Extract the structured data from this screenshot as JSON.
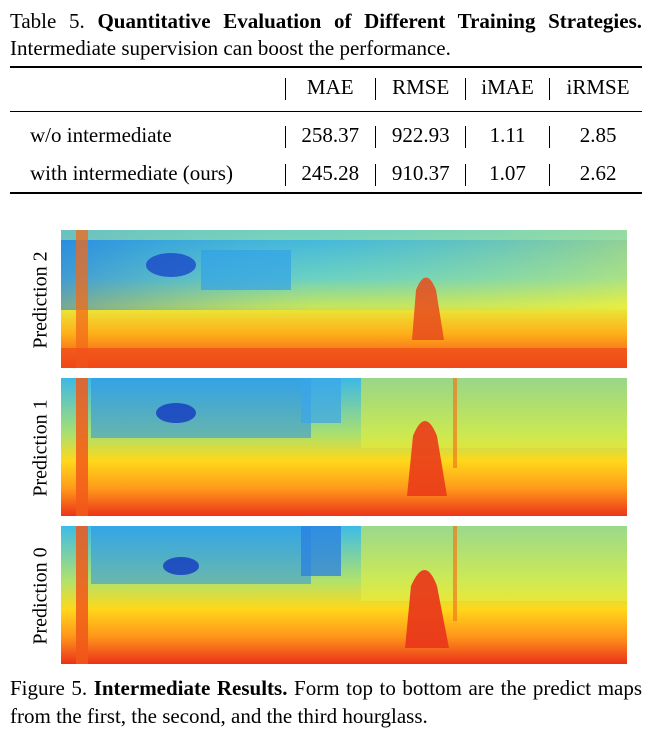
{
  "table_caption": {
    "label": "Table 5.",
    "title": "Quantitative Evaluation of Different Training Strategies.",
    "text": "Intermediate supervision can boost the performance."
  },
  "table": {
    "columns": [
      "",
      "MAE",
      "RMSE",
      "iMAE",
      "iRMSE"
    ],
    "rows": [
      {
        "name": "w/o intermediate",
        "mae": "258.37",
        "rmse": "922.93",
        "imae": "1.11",
        "irmse": "2.85"
      },
      {
        "name": "with intermediate (ours)",
        "mae": "245.28",
        "rmse": "910.37",
        "imae": "1.07",
        "irmse": "2.62"
      }
    ]
  },
  "figure": {
    "panels": [
      {
        "label": "Prediction 2"
      },
      {
        "label": "Prediction 1"
      },
      {
        "label": "Prediction 0"
      }
    ],
    "colors": {
      "near": "#e8321a",
      "mid": "#ffd21a",
      "far_cyan": "#3fb3e6",
      "far_blue": "#1a5fd6",
      "horizon": "#cfe96a"
    }
  },
  "figure_caption": {
    "label": "Figure 5.",
    "title": "Intermediate Results.",
    "text": "Form top to bottom are the predict maps from the first, the second, and the third hourglass."
  }
}
